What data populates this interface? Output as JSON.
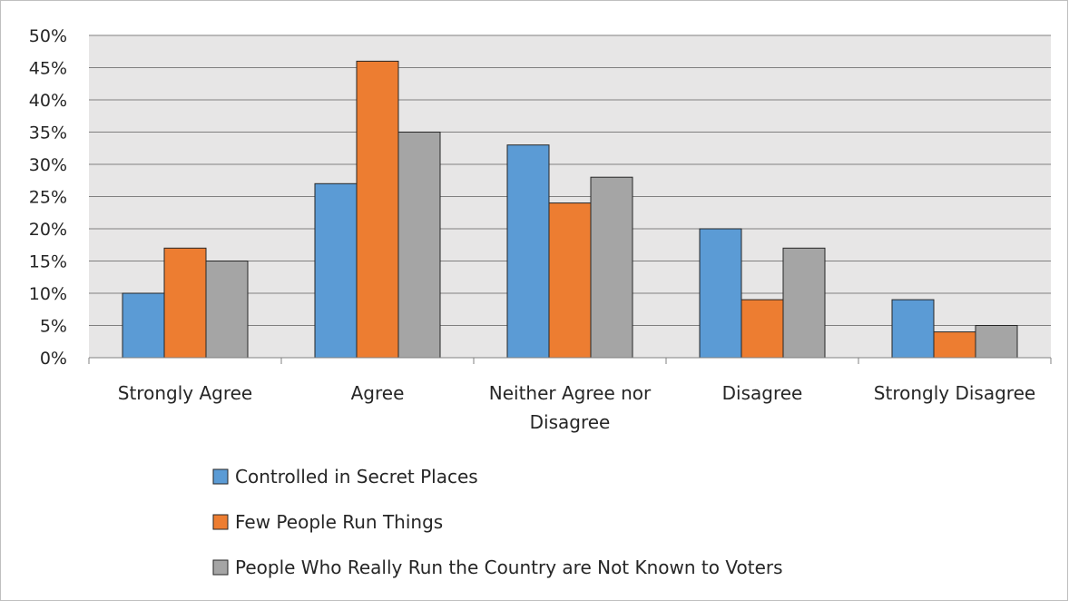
{
  "chart_data": {
    "type": "bar",
    "categories": [
      [
        "Strongly Agree"
      ],
      [
        "Agree"
      ],
      [
        "Neither Agree nor",
        "Disagree"
      ],
      [
        "Disagree"
      ],
      [
        "Strongly Disagree"
      ]
    ],
    "series": [
      {
        "name": "Controlled in Secret Places",
        "color": "#5b9bd5",
        "values": [
          10,
          27,
          33,
          20,
          9
        ]
      },
      {
        "name": "Few People Run Things",
        "color": "#ed7d31",
        "values": [
          17,
          46,
          24,
          9,
          4
        ]
      },
      {
        "name": "People Who Really Run the Country are Not Known to Voters",
        "color": "#a5a5a5",
        "values": [
          15,
          35,
          28,
          17,
          5
        ]
      }
    ],
    "ylim": [
      0,
      50
    ],
    "y_ticks": [
      "0%",
      "5%",
      "10%",
      "15%",
      "20%",
      "25%",
      "30%",
      "35%",
      "40%",
      "45%",
      "50%"
    ],
    "grid": true,
    "plot_background": "#e7e6e6",
    "legend_position": "bottom"
  }
}
